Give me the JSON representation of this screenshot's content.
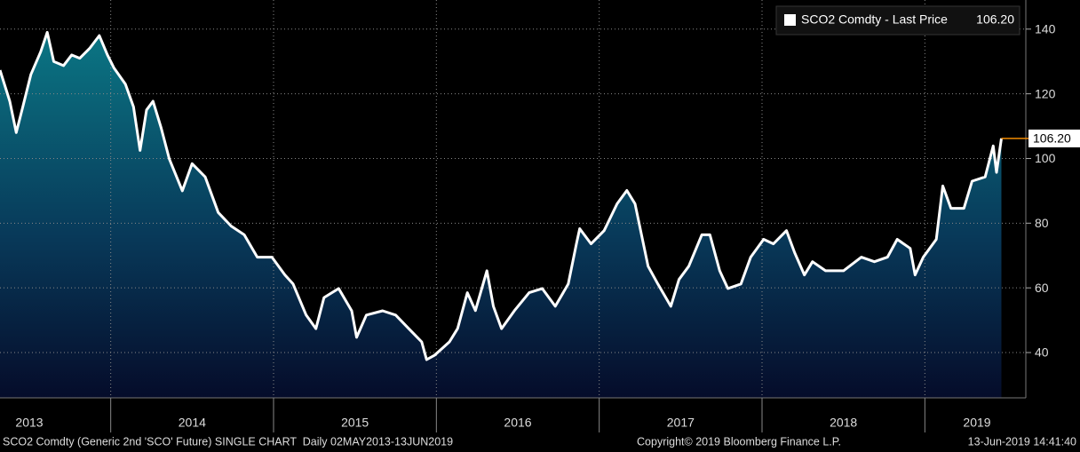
{
  "chart_data": {
    "type": "area-line",
    "series": [
      {
        "name": "SCO2 Comdty - Last Price",
        "color": "#ffffff",
        "last_value_label": "106.20",
        "x": [
          2013.32,
          2013.38,
          2013.42,
          2013.46,
          2013.51,
          2013.57,
          2013.61,
          2013.65,
          2013.71,
          2013.76,
          2013.81,
          2013.87,
          2013.93,
          2013.98,
          2014.02,
          2014.09,
          2014.14,
          2014.18,
          2014.22,
          2014.26,
          2014.31,
          2014.36,
          2014.44,
          2014.5,
          2014.58,
          2014.66,
          2014.74,
          2014.82,
          2014.9,
          2014.99,
          2015.07,
          2015.12,
          2015.2,
          2015.26,
          2015.31,
          2015.4,
          2015.48,
          2015.51,
          2015.57,
          2015.67,
          2015.75,
          2015.83,
          2015.91,
          2015.94,
          2015.99,
          2016.08,
          2016.13,
          2016.19,
          2016.24,
          2016.31,
          2016.35,
          2016.4,
          2016.48,
          2016.57,
          2016.65,
          2016.73,
          2016.81,
          2016.86,
          2016.88,
          2016.95,
          2017.03,
          2017.11,
          2017.17,
          2017.22,
          2017.26,
          2017.3,
          2017.36,
          2017.44,
          2017.49,
          2017.55,
          2017.63,
          2017.68,
          2017.74,
          2017.79,
          2017.87,
          2017.93,
          2018.01,
          2018.07,
          2018.15,
          2018.2,
          2018.26,
          2018.31,
          2018.39,
          2018.5,
          2018.61,
          2018.69,
          2018.77,
          2018.83,
          2018.91,
          2018.94,
          2018.99,
          2019.07,
          2019.11,
          2019.16,
          2019.24,
          2019.29,
          2019.37,
          2019.42,
          2019.44,
          2019.47
        ],
        "values": [
          127.3,
          117.7,
          108,
          116,
          126,
          133,
          139,
          130,
          128.7,
          132,
          131,
          134,
          138,
          132,
          128,
          123,
          116,
          102.5,
          115,
          117.7,
          109.4,
          99.8,
          90,
          98.4,
          94.3,
          83.3,
          79.1,
          76.4,
          69.5,
          69.5,
          64,
          61.2,
          51.6,
          47.4,
          57,
          59.8,
          52.9,
          44.7,
          51.6,
          52.9,
          51.6,
          47.4,
          43.3,
          37.8,
          39.2,
          43.3,
          47.4,
          58.5,
          53,
          65.3,
          54.3,
          47.4,
          53,
          58.5,
          59.8,
          54.3,
          61.2,
          73.6,
          78.3,
          73.6,
          77.7,
          86,
          90.1,
          86,
          76.4,
          66.7,
          61.2,
          54.3,
          62.6,
          66.7,
          76.4,
          76.4,
          65.3,
          59.8,
          61.2,
          69.5,
          75,
          73.6,
          77.7,
          70.9,
          64,
          68.1,
          65.3,
          65.3,
          69.5,
          68.1,
          69.5,
          75,
          72.2,
          64,
          69.5,
          75,
          91.5,
          84.6,
          84.6,
          93,
          94.3,
          103.9,
          95.7,
          106.2
        ]
      }
    ],
    "xlim": [
      2013.32,
      2019.62
    ],
    "ylim": [
      26,
      149
    ],
    "yticks": [
      40,
      60,
      80,
      100,
      120,
      140
    ],
    "xticks": [
      {
        "value": 2013.5,
        "label": "2013"
      },
      {
        "value": 2014.5,
        "label": "2014"
      },
      {
        "value": 2015.5,
        "label": "2015"
      },
      {
        "value": 2016.5,
        "label": "2016"
      },
      {
        "value": 2017.5,
        "label": "2017"
      },
      {
        "value": 2018.5,
        "label": "2018"
      },
      {
        "value": 2019.32,
        "label": "2019"
      }
    ],
    "xgrid": [
      2014,
      2015,
      2016,
      2017,
      2018,
      2019
    ],
    "grid": true,
    "legend": "top-right",
    "last_price_color": "#f08a00",
    "footer": {
      "left": "SCO2 Comdty (Generic 2nd 'SCO' Future) SINGLE CHART  Daily 02MAY2013-13JUN2019",
      "center": "Copyright© 2019 Bloomberg Finance L.P.",
      "right": "13-Jun-2019 14:41:40"
    }
  }
}
